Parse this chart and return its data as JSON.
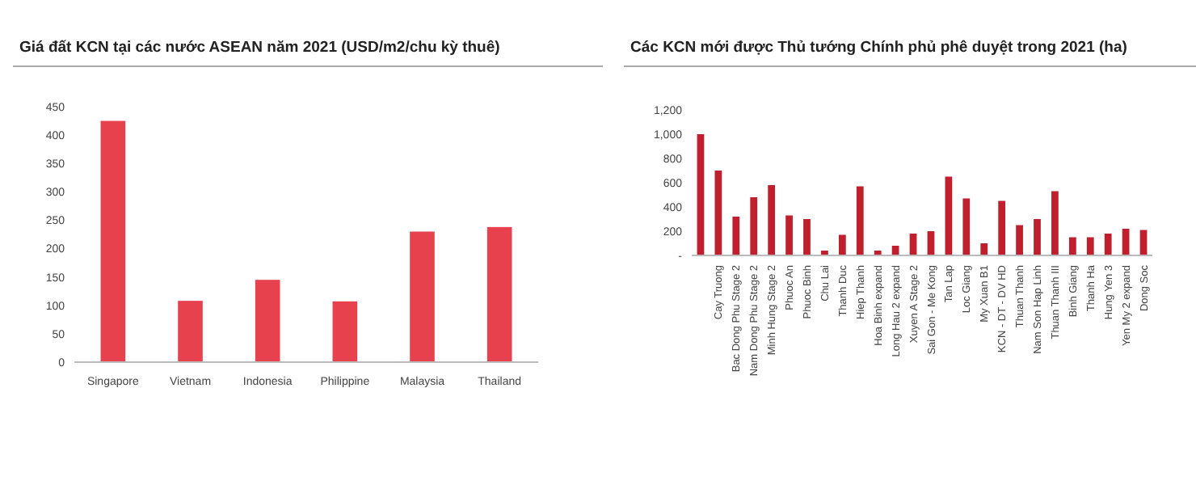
{
  "chart_data": [
    {
      "type": "bar",
      "title": "Giá đất KCN tại các nước ASEAN năm 2021 (USD/m2/chu kỳ thuê)",
      "categories": [
        "Singapore",
        "Vietnam",
        "Indonesia",
        "Philippine",
        "Malaysia",
        "Thailand"
      ],
      "values": [
        425,
        108,
        145,
        107,
        230,
        238
      ],
      "color": "#e8414e",
      "ylim": [
        0,
        450
      ],
      "yticks": [
        0,
        50,
        100,
        150,
        200,
        250,
        300,
        350,
        400,
        450
      ],
      "grid": false
    },
    {
      "type": "bar",
      "title": "Các KCN mới được Thủ tướng Chính phủ phê duyệt trong 2021 (ha)",
      "categories": [
        null,
        "Cay Truong",
        "Bac Dong Phu Stage 2",
        "Nam Dong Phu Stage 2",
        "Minh Hung Stage 2",
        "Phuoc An",
        "Phuoc Binh",
        "Chu Lai",
        "Thanh Duc",
        "Hiep Thanh",
        "Hoa Binh expand",
        "Long Hau 2 expand",
        "Xuyen A Stage 2",
        "Sai Gon - Me Kong",
        "Tan Lap",
        "Loc Giang",
        "My Xuan B1",
        "KCN - DT - DV HD",
        "Thuan Thanh",
        "Nam Son Hap Linh",
        "Thuan Thanh III",
        "Binh Giang",
        "Thanh Ha",
        "Hung Yen 3",
        "Yen My 2 expand",
        "Dong Soc"
      ],
      "values": [
        1000,
        700,
        320,
        480,
        580,
        330,
        300,
        40,
        170,
        570,
        40,
        80,
        180,
        200,
        650,
        470,
        100,
        450,
        250,
        300,
        530,
        150,
        150,
        180,
        220,
        210
      ],
      "color": "#c0202e",
      "ylim": [
        0,
        1200
      ],
      "yticks": [
        {
          "value": 0,
          "label": "-"
        },
        200,
        400,
        600,
        800,
        {
          "value": 1000,
          "label": "1,000"
        },
        {
          "value": 1200,
          "label": "1,200"
        }
      ],
      "grid": false
    }
  ]
}
